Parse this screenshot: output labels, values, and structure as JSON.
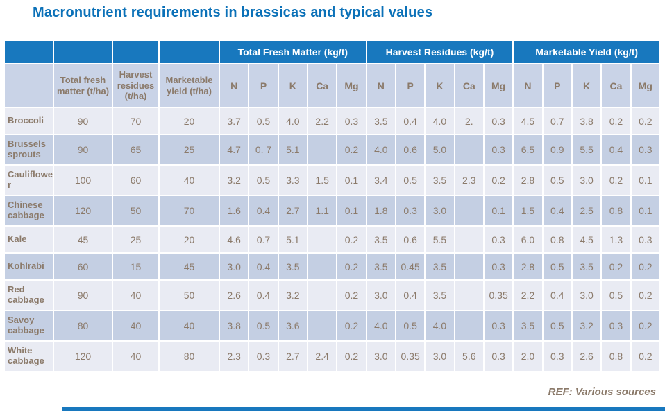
{
  "slide": {
    "title": "Macronutrient requirements in brassicas and typical values",
    "footer_ref": "REF: Various sources"
  },
  "colors": {
    "title_blue": "#0B71B8",
    "header_blue": "#1878BE",
    "header_light_blue": "#C9D3E7",
    "row_light": "#E9EBF3",
    "row_dark": "#C4CFE3",
    "text_brown": "#8B7A6A"
  },
  "table": {
    "group_headers": [
      "Total Fresh Matter (kg/t)",
      "Harvest Residues (kg/t)",
      "Marketable Yield (kg/t)"
    ],
    "sub_headers": [
      "Total fresh matter (t/ha)",
      "Harvest residues (t/ha)",
      "Marketable yield (t/ha)"
    ],
    "nutrient_headers": [
      "N",
      "P",
      "K",
      "Ca",
      "Mg"
    ],
    "rows": [
      {
        "label": "Broccoli",
        "values": [
          "90",
          "70",
          "20",
          "3.7",
          "0.5",
          "4.0",
          "2.2",
          "0.3",
          "3.5",
          "0.4",
          "4.0",
          "2.",
          "0.3",
          "4.5",
          "0.7",
          "3.8",
          "0.2",
          "0.2"
        ]
      },
      {
        "label": "Brussels sprouts",
        "values": [
          "90",
          "65",
          "25",
          "4.7",
          "0. 7",
          "5.1",
          "",
          "0.2",
          "4.0",
          "0.6",
          "5.0",
          "",
          "0.3",
          "6.5",
          "0.9",
          "5.5",
          "0.4",
          "0.3"
        ]
      },
      {
        "label": "Cauliflower",
        "values": [
          "100",
          "60",
          "40",
          "3.2",
          "0.5",
          "3.3",
          "1.5",
          "0.1",
          "3.4",
          "0.5",
          "3.5",
          "2.3",
          "0.2",
          "2.8",
          "0.5",
          "3.0",
          "0.2",
          "0.1"
        ]
      },
      {
        "label": "Chinese cabbage",
        "values": [
          "120",
          "50",
          "70",
          "1.6",
          "0.4",
          "2.7",
          "1.1",
          "0.1",
          "1.8",
          "0.3",
          "3.0",
          "",
          "0.1",
          "1.5",
          "0.4",
          "2.5",
          "0.8",
          "0.1"
        ]
      },
      {
        "label": "Kale",
        "values": [
          "45",
          "25",
          "20",
          "4.6",
          "0.7",
          "5.1",
          "",
          "0.2",
          "3.5",
          "0.6",
          "5.5",
          "",
          "0.3",
          "6.0",
          "0.8",
          "4.5",
          "1.3",
          "0.3"
        ]
      },
      {
        "label": "Kohlrabi",
        "values": [
          "60",
          "15",
          "45",
          "3.0",
          "0.4",
          "3.5",
          "",
          "0.2",
          "3.5",
          "0.45",
          "3.5",
          "",
          "0.3",
          "2.8",
          "0.5",
          "3.5",
          "0.2",
          "0.2"
        ]
      },
      {
        "label": "Red cabbage",
        "values": [
          "90",
          "40",
          "50",
          "2.6",
          "0.4",
          "3.2",
          "",
          "0.2",
          "3.0",
          "0.4",
          "3.5",
          "",
          "0.35",
          "2.2",
          "0.4",
          "3.0",
          "0.5",
          "0.2"
        ]
      },
      {
        "label": "Savoy cabbage",
        "values": [
          "80",
          "40",
          "40",
          "3.8",
          "0.5",
          "3.6",
          "",
          "0.2",
          "4.0",
          "0.5",
          "4.0",
          "",
          "0.3",
          "3.5",
          "0.5",
          "3.2",
          "0.3",
          "0.2"
        ]
      },
      {
        "label": "White cabbage",
        "values": [
          "120",
          "40",
          "80",
          "2.3",
          "0.3",
          "2.7",
          "2.4",
          "0.2",
          "3.0",
          "0.35",
          "3.0",
          "5.6",
          "0.3",
          "2.0",
          "0.3",
          "2.6",
          "0.8",
          "0.2"
        ]
      }
    ]
  }
}
